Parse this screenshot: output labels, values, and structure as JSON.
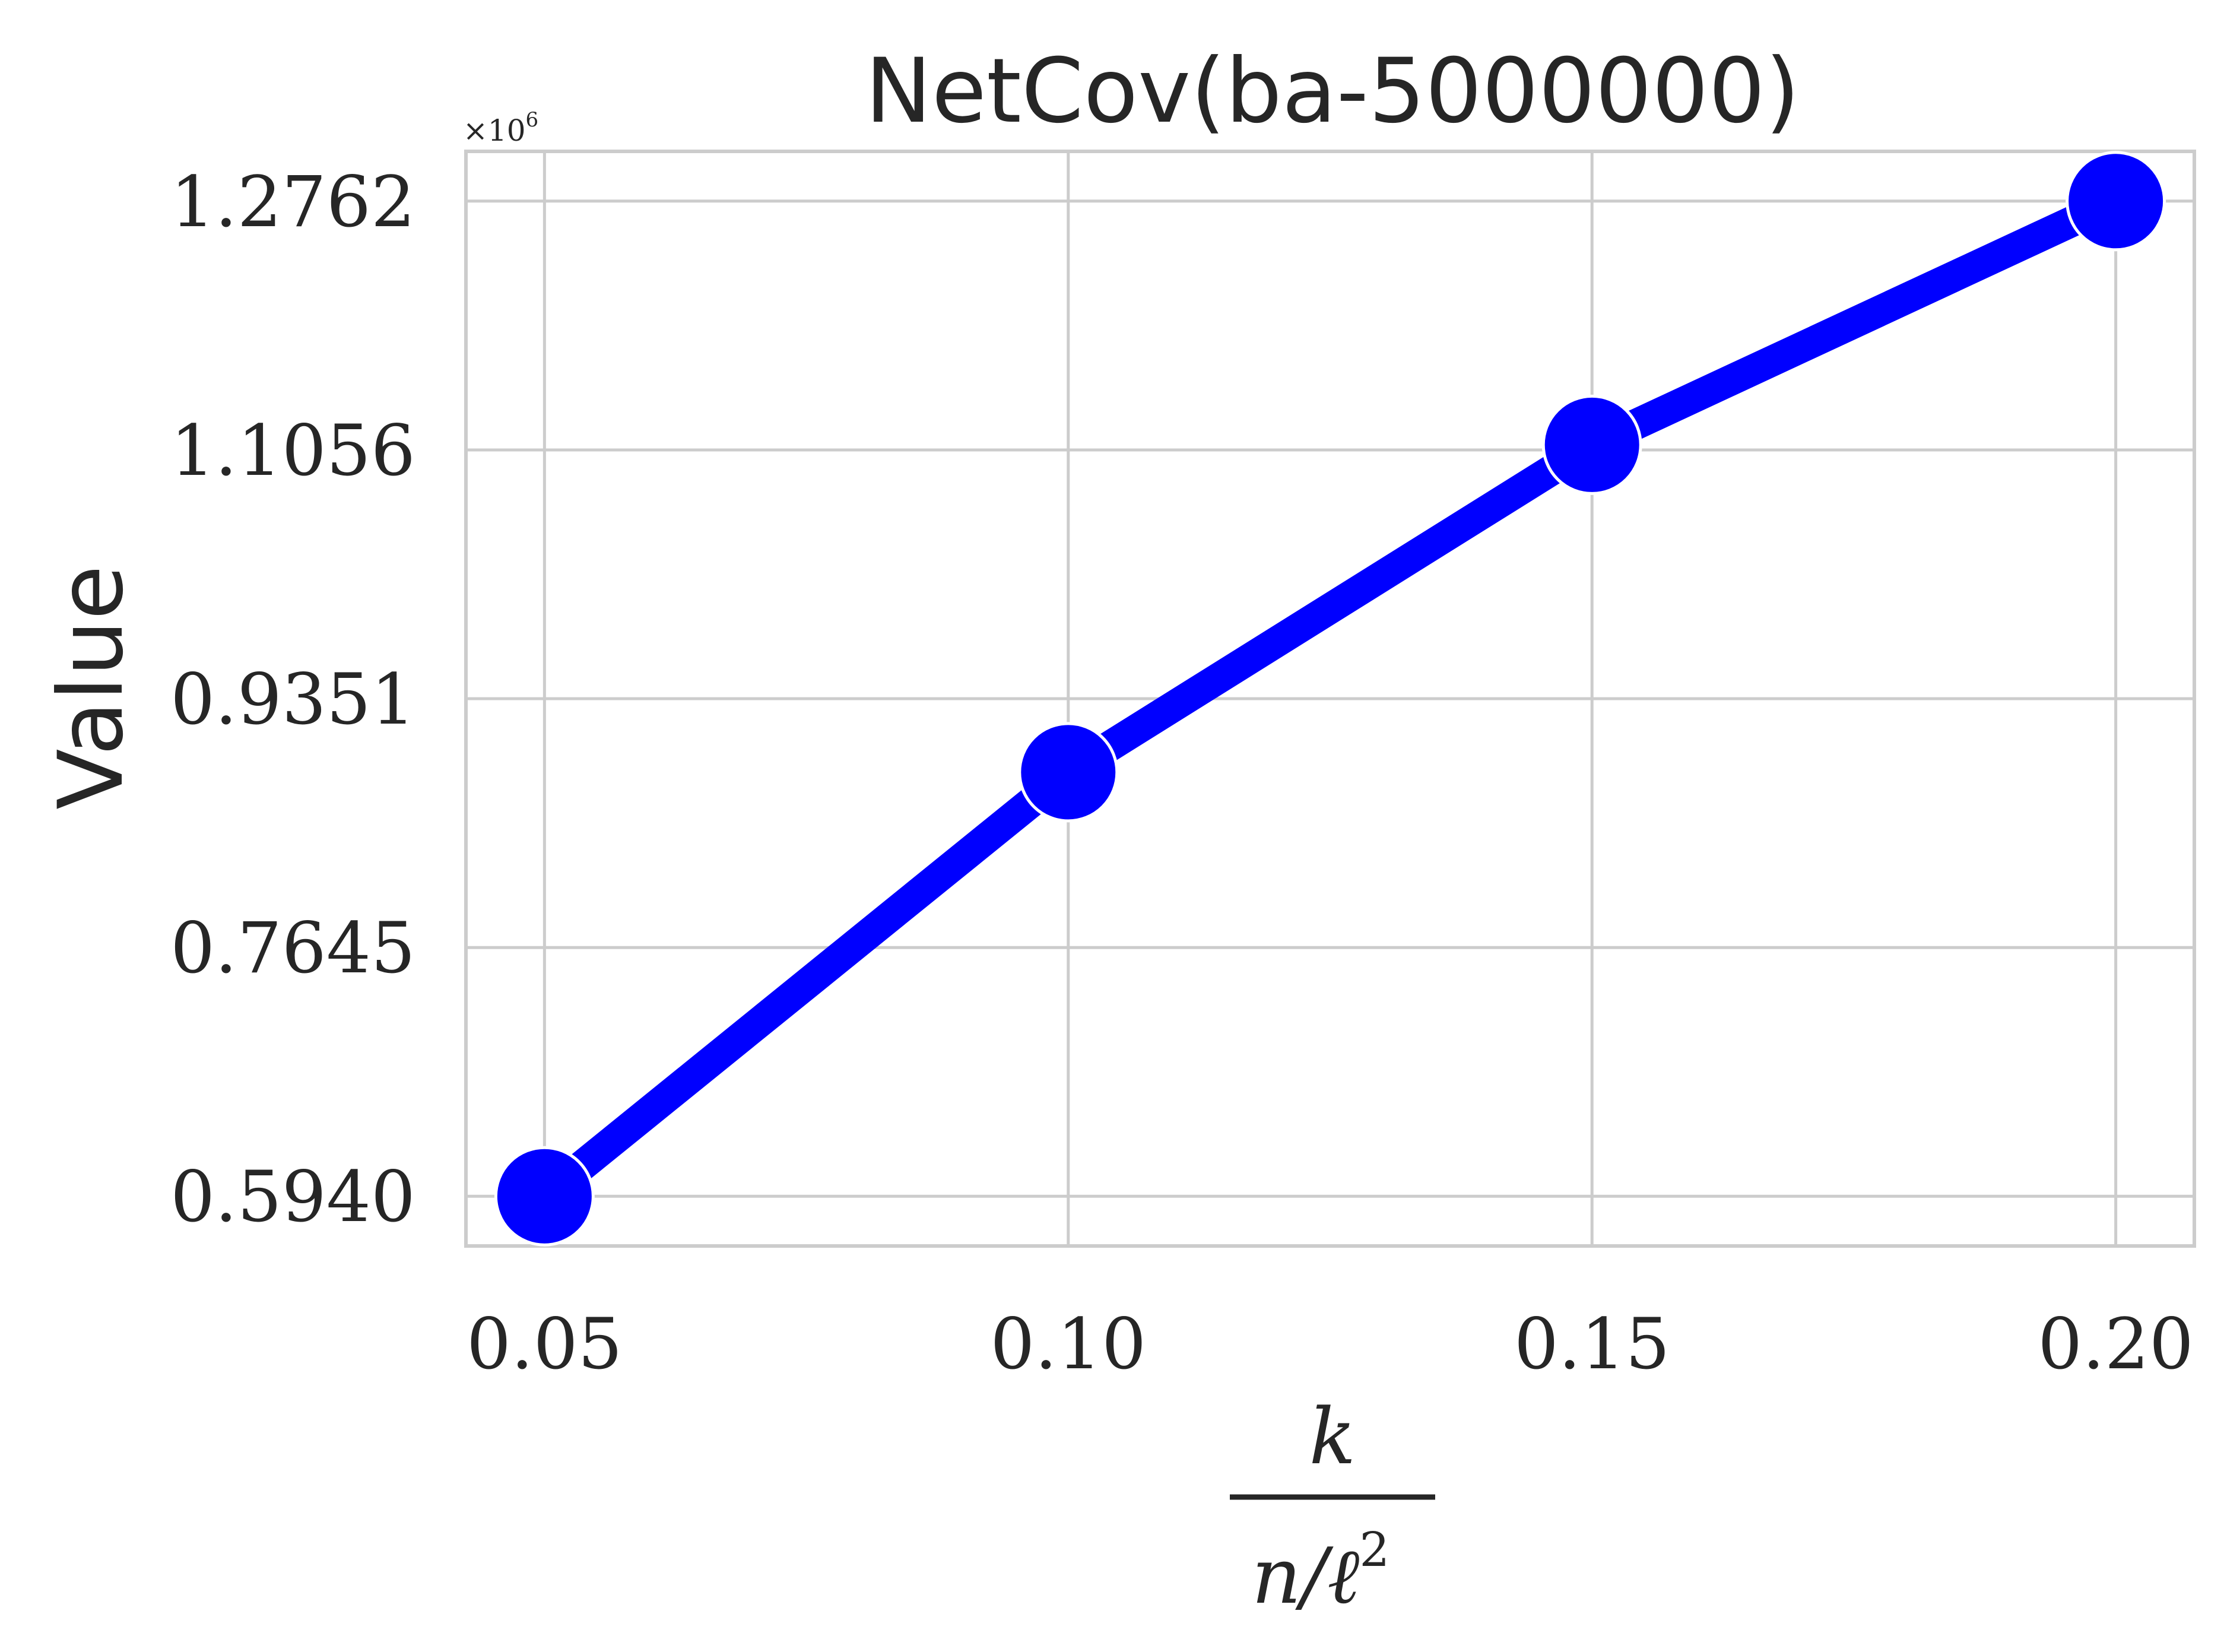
{
  "chart_data": {
    "type": "line",
    "title": "NetCov(ba-5000000)",
    "ylabel": "Value",
    "xlabel": {
      "numerator": "k",
      "denominator": "n/ℓ",
      "denominator_exponent": "2"
    },
    "y_multiplier": {
      "base": "×10",
      "exponent": "6"
    },
    "x": [
      0.05,
      0.1,
      0.15,
      0.2
    ],
    "x_tick_labels": [
      "0.05",
      "0.10",
      "0.15",
      "0.20"
    ],
    "y_ticks": [
      0.594,
      0.7645,
      0.9351,
      1.1056,
      1.2762
    ],
    "y_tick_labels": [
      "0.5940",
      "0.7645",
      "0.9351",
      "1.1056",
      "1.2762"
    ],
    "xlim": [
      0.0425,
      0.2075
    ],
    "ylim": [
      0.5599,
      1.3103
    ],
    "series": [
      {
        "values": [
          0.594,
          0.8847,
          1.1091,
          1.2762
        ],
        "color": "#0000ff"
      }
    ],
    "grid": true,
    "legend": "none",
    "grid_color": "#cccccc",
    "axis_color": "#cccccc"
  }
}
